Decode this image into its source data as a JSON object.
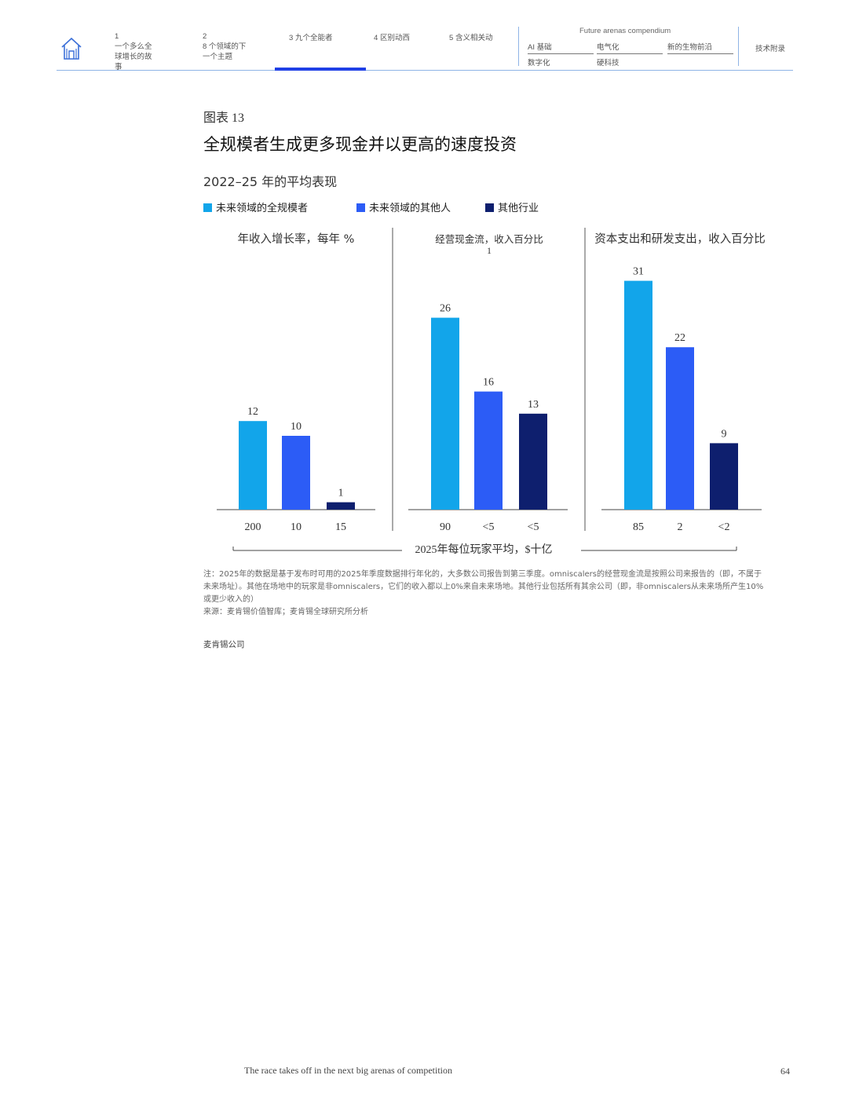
{
  "nav": {
    "items": [
      {
        "num": "1",
        "label": "一个多么全球增长的故事"
      },
      {
        "num": "2",
        "label": "8 个领域的下一个主题"
      },
      {
        "num": "3",
        "label": "九个全能者"
      },
      {
        "num": "4",
        "label": "区别动西"
      },
      {
        "num": "5",
        "label": "含义相关动"
      }
    ],
    "compendium_title": "Future arenas compendium",
    "compendium_links": [
      "AI 基础",
      "电气化",
      "新的生物前沿",
      "数字化",
      "硬科技"
    ],
    "appendix": "技术附录"
  },
  "exhibit": {
    "label": "图表 13",
    "title": "全规模者生成更多现金并以更高的速度投资",
    "subtitle": "2022–25 年的平均表现"
  },
  "legend": [
    {
      "label": "未来领域的全规模者",
      "color": "#12a5ea"
    },
    {
      "label": "未来领域的其他人",
      "color": "#2c5cf6"
    },
    {
      "label": "其他行业",
      "color": "#0e1f6e"
    }
  ],
  "chart_data": [
    {
      "type": "bar",
      "title": "年收入增长率，每年 %",
      "series": [
        {
          "name": "未来领域的全规模者",
          "value": 12,
          "players": "200"
        },
        {
          "name": "未来领域的其他人",
          "value": 10,
          "players": "10"
        },
        {
          "name": "其他行业",
          "value": 1,
          "players": "15"
        }
      ]
    },
    {
      "type": "bar",
      "title": "经营现金流，收入百分比",
      "title_note": "1",
      "series": [
        {
          "name": "未来领域的全规模者",
          "value": 26,
          "players": "90"
        },
        {
          "name": "未来领域的其他人",
          "value": 16,
          "players": "<5"
        },
        {
          "name": "其他行业",
          "value": 13,
          "players": "<5"
        }
      ]
    },
    {
      "type": "bar",
      "title": "资本支出和研发支出，收入百分比",
      "series": [
        {
          "name": "未来领域的全规模者",
          "value": 31,
          "players": "85"
        },
        {
          "name": "未来领域的其他人",
          "value": 22,
          "players": "2"
        },
        {
          "name": "其他行业",
          "value": 9,
          "players": "<2"
        }
      ]
    }
  ],
  "axis_caption": "2025年每位玩家平均，$十亿",
  "notes": {
    "note": "注：2025年的数据是基于发布时可用的2025年季度数据排行年化的，大多数公司报告到第三季度。omniscalers的经营现金流是按照公司来报告的（即，不属于未来场址）。其他在场地中的玩家是非omniscalers，它们的收入都以上0%来自未来场地。其他行业包括所有其余公司（即，非omniscalers从未来场所产生10%或更少收入的）",
    "source": "来源：麦肯锡价值智库；麦肯锡全球研究所分析"
  },
  "publisher": "麦肯锡公司",
  "footer": {
    "text": "The race takes off in the next big arenas of competition",
    "page": "64"
  }
}
